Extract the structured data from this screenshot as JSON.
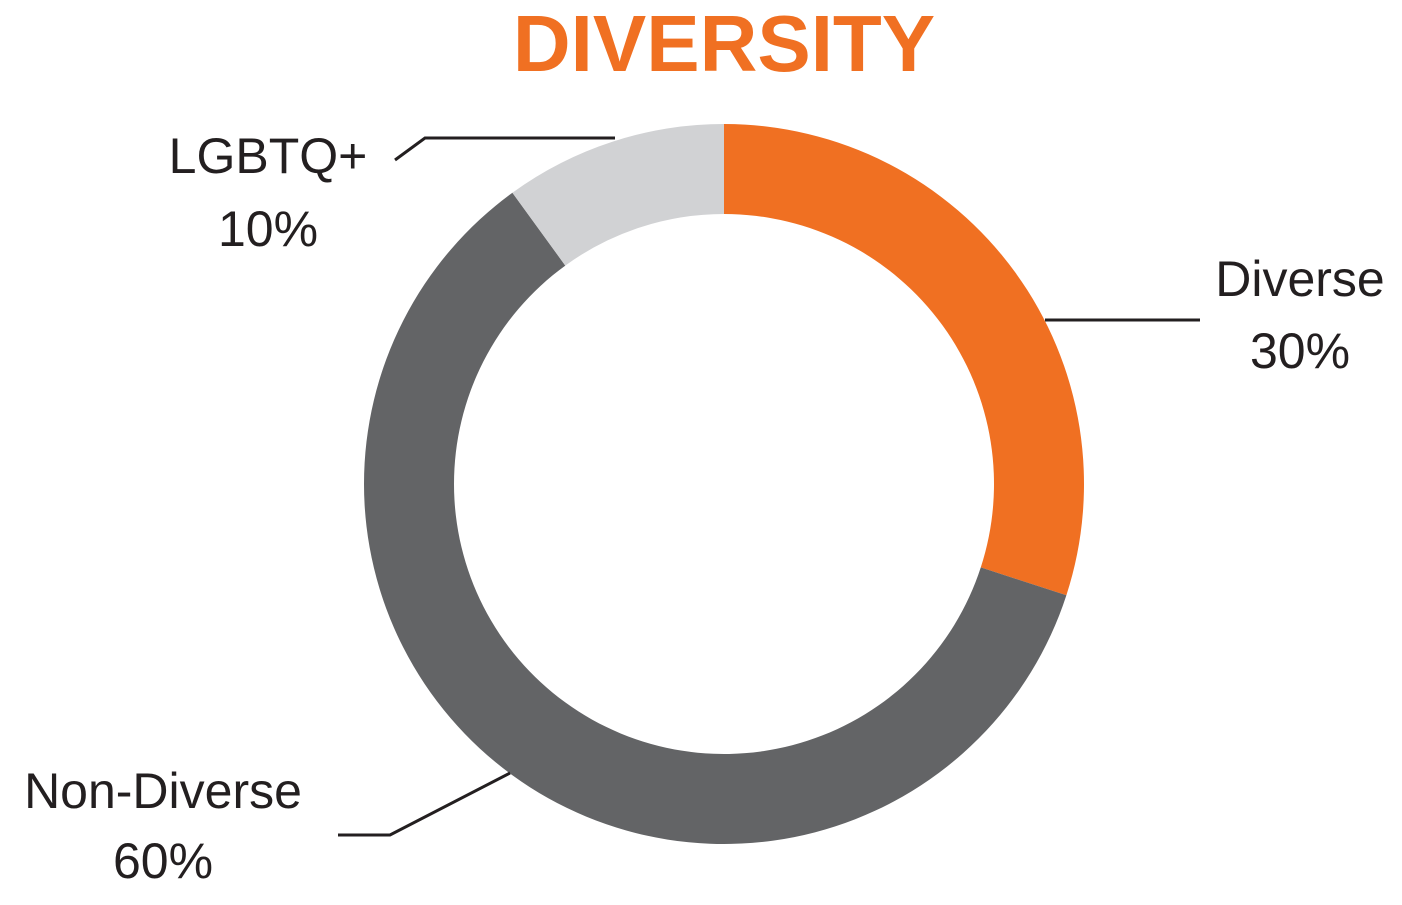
{
  "chart_data": {
    "type": "donut",
    "title": "DIVERSITY",
    "categories": [
      "Diverse",
      "Non-Diverse",
      "LGBTQ+"
    ],
    "values": [
      30,
      60,
      10
    ],
    "value_labels": [
      "30%",
      "60%",
      "10%"
    ],
    "colors": [
      "#f07022",
      "#636466",
      "#d1d2d4"
    ]
  }
}
